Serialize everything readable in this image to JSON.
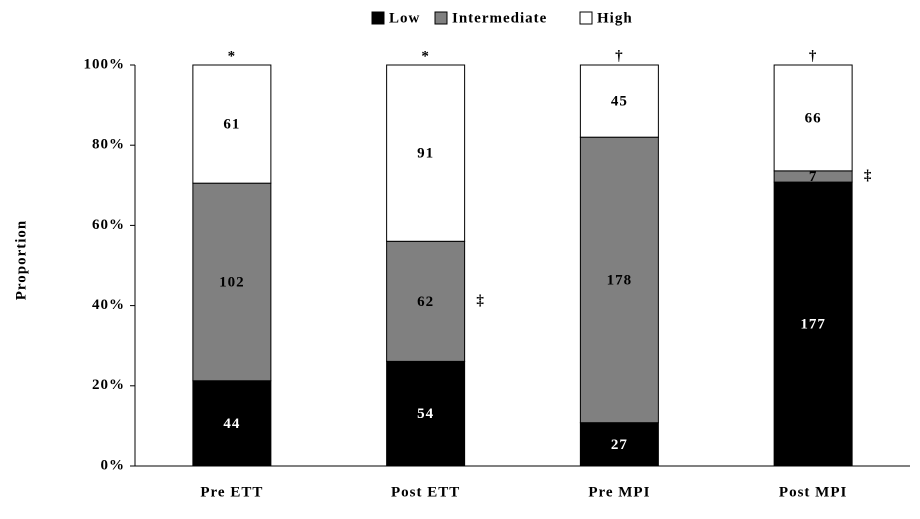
{
  "chart_data": {
    "type": "bar",
    "stacked": "percent",
    "ylabel": "Proportion",
    "categories": [
      "Pre ETT",
      "Post ETT",
      "Pre MPI",
      "Post MPI"
    ],
    "series": [
      {
        "name": "Low",
        "color": "#000000",
        "label_color": "#ffffff",
        "values": [
          44,
          54,
          27,
          177
        ]
      },
      {
        "name": "Intermediate",
        "color": "#808080",
        "label_color": "#000000",
        "values": [
          102,
          62,
          178,
          7
        ]
      },
      {
        "name": "High",
        "color": "#ffffff",
        "label_color": "#000000",
        "values": [
          61,
          91,
          45,
          66
        ]
      }
    ],
    "ylim": [
      0,
      100
    ],
    "yticks": [
      {
        "value": 0,
        "label": "0%"
      },
      {
        "value": 20,
        "label": "20%"
      },
      {
        "value": 40,
        "label": "40%"
      },
      {
        "value": 60,
        "label": "60%"
      },
      {
        "value": 80,
        "label": "80%"
      },
      {
        "value": 100,
        "label": "100%"
      }
    ],
    "top_markers": [
      "*",
      "*",
      "†",
      "†"
    ],
    "side_markers": [
      {
        "category": "Post ETT",
        "series": "Intermediate",
        "text": "‡"
      },
      {
        "category": "Post MPI",
        "series": "Intermediate",
        "text": "‡"
      }
    ],
    "legend": "top"
  }
}
